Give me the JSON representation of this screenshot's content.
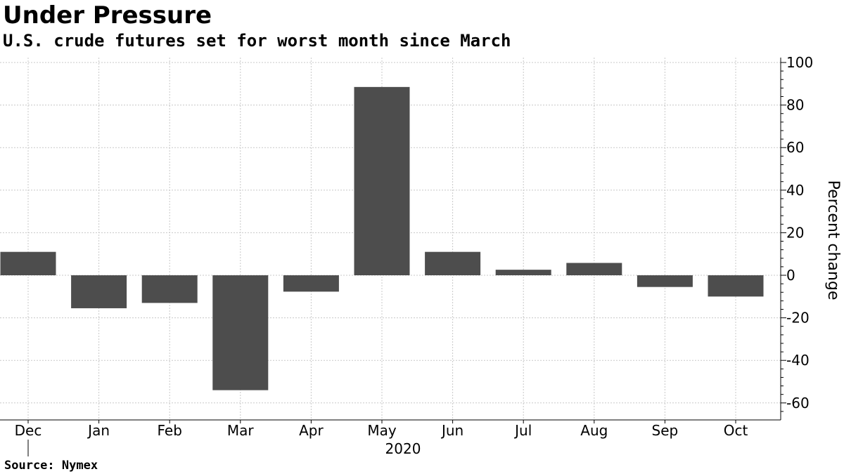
{
  "header": {
    "title": "Under Pressure",
    "subtitle": "U.S. crude futures set for worst month since March"
  },
  "footer": {
    "source": "Source: Nymex"
  },
  "colors": {
    "bar": "#4d4d4d",
    "grid": "#c8c8c8",
    "axis": "#000000"
  },
  "chart_data": {
    "type": "bar",
    "title": "Under Pressure",
    "subtitle": "U.S. crude futures set for worst month since March",
    "categories": [
      "Dec",
      "Jan",
      "Feb",
      "Mar",
      "Apr",
      "May",
      "Jun",
      "Jul",
      "Aug",
      "Sep",
      "Oct"
    ],
    "values": [
      11,
      -15.5,
      -13,
      -54,
      -7.7,
      88.5,
      11,
      2.6,
      5.8,
      -5.5,
      -10
    ],
    "year_label": "2020",
    "xlabel": "",
    "ylabel": "Percent change",
    "yticks": [
      100,
      80,
      60,
      40,
      20,
      0,
      -20,
      -40,
      -60
    ],
    "ylim": [
      -68,
      102
    ],
    "grid": true,
    "y_axis_side": "right"
  }
}
